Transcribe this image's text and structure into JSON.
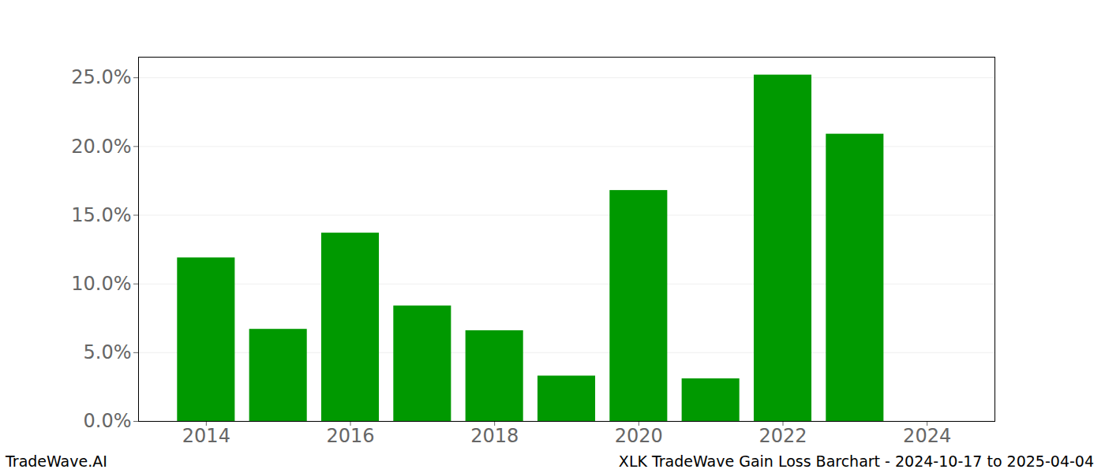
{
  "chart_data": {
    "type": "bar",
    "title": "XLK TradeWave Gain Loss Barchart - 2024-10-17 to 2025-04-04",
    "annotations": [
      "TradeWave.AI"
    ],
    "x": [
      2014,
      2015,
      2016,
      2017,
      2018,
      2019,
      2020,
      2021,
      2022,
      2023,
      2024
    ],
    "values": [
      11.9,
      6.7,
      13.7,
      8.4,
      6.6,
      3.3,
      16.8,
      3.1,
      25.2,
      20.9,
      0
    ],
    "color": "#009900",
    "xlim": [
      2013.06,
      2024.94
    ],
    "xticks": [
      2014,
      2016,
      2018,
      2020,
      2022,
      2024
    ],
    "ylim": [
      0,
      26.5
    ],
    "yticks": [
      {
        "value": 0,
        "label": "0.0%"
      },
      {
        "value": 5,
        "label": "5.0%"
      },
      {
        "value": 10,
        "label": "10.0%"
      },
      {
        "value": 15,
        "label": "15.0%"
      },
      {
        "value": 20,
        "label": "20.0%"
      },
      {
        "value": 25,
        "label": "25.0%"
      }
    ],
    "grid": true
  }
}
